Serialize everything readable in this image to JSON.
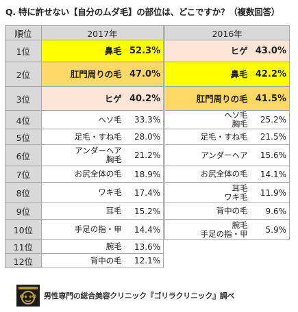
{
  "title": "Q. 特に許せない【自分のムダ毛】の部位は、どこですか？（複数回答）",
  "table": {
    "header": {
      "rank": "順位",
      "year_a": "2017年",
      "year_b": "2016年"
    },
    "rows": [
      {
        "rank": "1位",
        "a_label": "鼻毛",
        "a_pct": "52.3%",
        "b_label": "ヒゲ",
        "b_pct": "43.0%"
      },
      {
        "rank": "2位",
        "a_label": "肛門周りの毛",
        "a_pct": "47.0%",
        "b_label": "鼻毛",
        "b_pct": "42.2%"
      },
      {
        "rank": "3位",
        "a_label": "ヒゲ",
        "a_pct": "40.2%",
        "b_label": "肛門周りの毛",
        "b_pct": "41.5%"
      },
      {
        "rank": "4位",
        "a_label": "ヘソ毛",
        "a_pct": "33.3%",
        "b_label_1": "ヘソ毛",
        "b_label_2": "胸毛",
        "b_pct": "25.2%"
      },
      {
        "rank": "5位",
        "a_label": "足毛・すね毛",
        "a_pct": "28.0%",
        "b_label": "足毛・すね毛",
        "b_pct": "21.5%"
      },
      {
        "rank": "6位",
        "a_label_1": "アンダーヘア",
        "a_label_2": "胸毛",
        "a_pct": "21.2%",
        "b_label": "アンダーヘア",
        "b_pct": "15.6%"
      },
      {
        "rank": "7位",
        "a_label": "お尻全体の毛",
        "a_pct": "18.9%",
        "b_label": "お尻全体の毛",
        "b_pct": "14.1%"
      },
      {
        "rank": "8位",
        "a_label": "ワキ毛",
        "a_pct": "17.4%",
        "b_label_1": "耳毛",
        "b_label_2": "ワキ毛",
        "b_pct": "11.9%"
      },
      {
        "rank": "9位",
        "a_label": "耳毛",
        "a_pct": "15.2%",
        "b_label": "背中の毛",
        "b_pct": "9.6%"
      },
      {
        "rank": "10位",
        "a_label": "手足の指・甲",
        "a_pct": "14.4%",
        "b_label_1": "腕毛",
        "b_label_2": "手足の指・甲",
        "b_pct": "5.9%"
      },
      {
        "rank": "11位",
        "a_label": "腕毛",
        "a_pct": "13.6%"
      },
      {
        "rank": "12位",
        "a_label": "背中の毛",
        "a_pct": "12.1%"
      }
    ]
  },
  "footer": {
    "source": "男性専門の総合美容クリニック『ゴリラクリニック』調べ"
  },
  "colors": {
    "yellow": "#ffff00",
    "gold": "#ffd966",
    "peach": "#fce4d6",
    "header_gray": "#d9d9d9"
  }
}
